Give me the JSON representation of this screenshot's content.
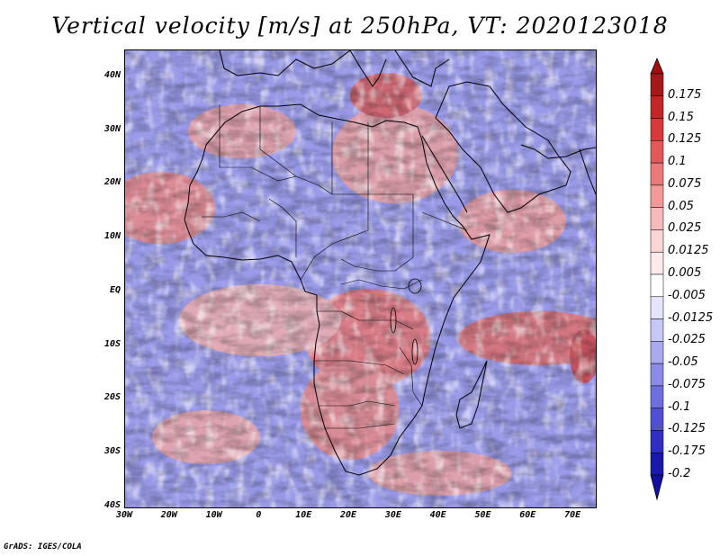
{
  "title": "Vertical velocity [m/s] at 250hPa, VT: 2020123018",
  "credit": "GrADS: IGES/COLA",
  "map": {
    "lon_range": [
      -30,
      75
    ],
    "lat_range": [
      -40,
      45
    ],
    "lat_ticks": [
      {
        "lat": 40,
        "label": "40N"
      },
      {
        "lat": 30,
        "label": "30N"
      },
      {
        "lat": 20,
        "label": "20N"
      },
      {
        "lat": 10,
        "label": "10N"
      },
      {
        "lat": 0,
        "label": "EQ"
      },
      {
        "lat": -10,
        "label": "10S"
      },
      {
        "lat": -20,
        "label": "20S"
      },
      {
        "lat": -30,
        "label": "30S"
      },
      {
        "lat": -40,
        "label": "40S"
      }
    ],
    "lon_ticks": [
      {
        "lon": -30,
        "label": "30W"
      },
      {
        "lon": -20,
        "label": "20W"
      },
      {
        "lon": -10,
        "label": "10W"
      },
      {
        "lon": 0,
        "label": "0"
      },
      {
        "lon": 10,
        "label": "10E"
      },
      {
        "lon": 20,
        "label": "20E"
      },
      {
        "lon": 30,
        "label": "30E"
      },
      {
        "lon": 40,
        "label": "40E"
      },
      {
        "lon": 50,
        "label": "50E"
      },
      {
        "lon": 60,
        "label": "60E"
      },
      {
        "lon": 70,
        "label": "70E"
      }
    ],
    "colorbar": [
      {
        "label": "0.175",
        "color": "#a01a1a"
      },
      {
        "label": "0.15",
        "color": "#c02828"
      },
      {
        "label": "0.125",
        "color": "#d43c3c"
      },
      {
        "label": "0.1",
        "color": "#e05a5a"
      },
      {
        "label": "0.075",
        "color": "#ea7a7a"
      },
      {
        "label": "0.05",
        "color": "#f29a9a"
      },
      {
        "label": "0.025",
        "color": "#f7baba"
      },
      {
        "label": "0.0125",
        "color": "#fbd6d6"
      },
      {
        "label": "0.005",
        "color": "#fdeaea"
      },
      {
        "label": "-0.005",
        "color": "#ffffff"
      },
      {
        "label": "-0.0125",
        "color": "#e4e4fc"
      },
      {
        "label": "-0.025",
        "color": "#c8c8f6"
      },
      {
        "label": "-0.05",
        "color": "#aaaaf0"
      },
      {
        "label": "-0.075",
        "color": "#8c8ce8"
      },
      {
        "label": "-0.1",
        "color": "#6e6ede"
      },
      {
        "label": "-0.125",
        "color": "#5050d2"
      },
      {
        "label": "-0.175",
        "color": "#3030c0"
      },
      {
        "label": "-0.2",
        "color": "#1a1aa8"
      }
    ],
    "bottom_arrow_color": "#1010a0",
    "top_arrow_color": "#a01010"
  }
}
